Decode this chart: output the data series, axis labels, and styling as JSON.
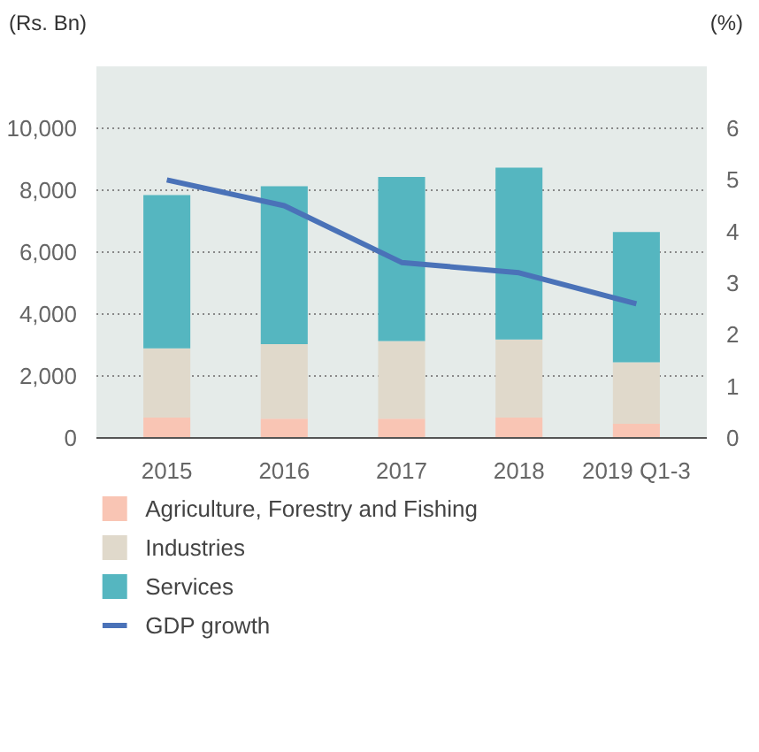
{
  "chart_data": {
    "type": "bar",
    "stacked": true,
    "ylabel": "(Rs. Bn)",
    "y2label": "(%)",
    "categories": [
      "2015",
      "2016",
      "2017",
      "2018",
      "2019 Q1-3"
    ],
    "series": [
      {
        "name": "Agriculture, Forestry and Fishing",
        "color": "#f9c5b4",
        "values": [
          660,
          620,
          620,
          660,
          460
        ]
      },
      {
        "name": "Industries",
        "color": "#e0d9cb",
        "values": [
          2230,
          2410,
          2510,
          2520,
          1980
        ]
      },
      {
        "name": "Services",
        "color": "#55b6c0",
        "values": [
          4950,
          5100,
          5300,
          5550,
          4210
        ]
      },
      {
        "name": "GDP growth",
        "type": "line",
        "axis": "y2",
        "color": "#4a72b8",
        "values": [
          5.0,
          4.5,
          3.4,
          3.2,
          2.6
        ]
      }
    ],
    "ylim": [
      0,
      12000
    ],
    "yticks": [
      0,
      {
        "value": 2000,
        "label": "2,000"
      },
      {
        "value": 4000,
        "label": "4,000"
      },
      {
        "value": 6000,
        "label": "6,000"
      },
      {
        "value": 8000,
        "label": "8,000"
      },
      {
        "value": 10000,
        "label": "10,000"
      }
    ],
    "y2lim": [
      0,
      7.2
    ],
    "y2ticks": [
      0,
      1,
      2,
      3,
      4,
      5,
      6
    ],
    "grid": "y",
    "legend": "bottom"
  }
}
